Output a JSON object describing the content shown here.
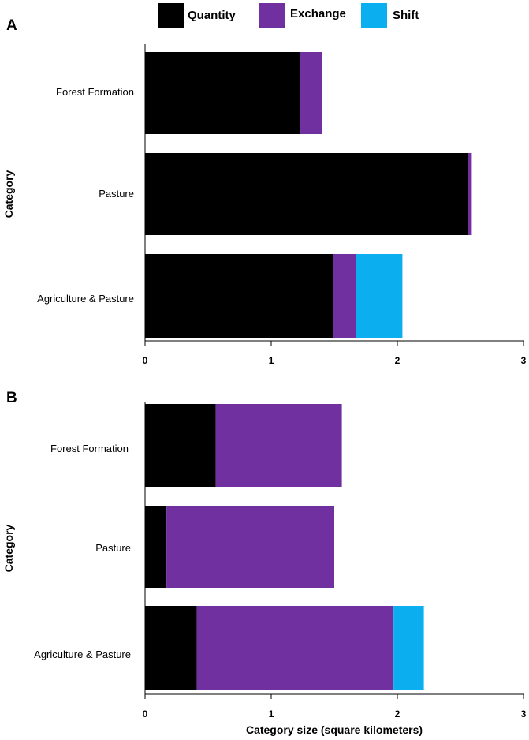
{
  "legend": [
    {
      "name": "Quantity",
      "color": "#000000"
    },
    {
      "name": "Exchange",
      "color": "#7030A0"
    },
    {
      "name": "Shift",
      "color": "#0BAFEF"
    }
  ],
  "chart_data": [
    {
      "panel": "A",
      "type": "bar",
      "orientation": "horizontal",
      "stacked": true,
      "categories": [
        "Forest Formation",
        "Pasture",
        "Agriculture & Pasture"
      ],
      "series": [
        {
          "name": "Quantity",
          "values": [
            1.23,
            2.56,
            1.49
          ]
        },
        {
          "name": "Exchange",
          "values": [
            0.17,
            0.03,
            0.18
          ]
        },
        {
          "name": "Shift",
          "values": [
            0.0,
            0.0,
            0.37
          ]
        }
      ],
      "xlim": [
        0,
        3
      ],
      "xticks": [
        "0",
        "1",
        "2",
        "3"
      ],
      "xlabel": "",
      "ylabel": "Category"
    },
    {
      "panel": "B",
      "type": "bar",
      "orientation": "horizontal",
      "stacked": true,
      "categories": [
        "Forest Formation",
        "Pasture",
        "Agriculture & Pasture"
      ],
      "series": [
        {
          "name": "Quantity",
          "values": [
            0.56,
            0.17,
            0.41
          ]
        },
        {
          "name": "Exchange",
          "values": [
            1.0,
            1.33,
            1.56
          ]
        },
        {
          "name": "Shift",
          "values": [
            0.0,
            0.0,
            0.24
          ]
        }
      ],
      "xlim": [
        0,
        3
      ],
      "xticks": [
        "0",
        "1",
        "2",
        "3"
      ],
      "xlabel": "Category size (square kilometers)",
      "ylabel": "Category"
    }
  ]
}
